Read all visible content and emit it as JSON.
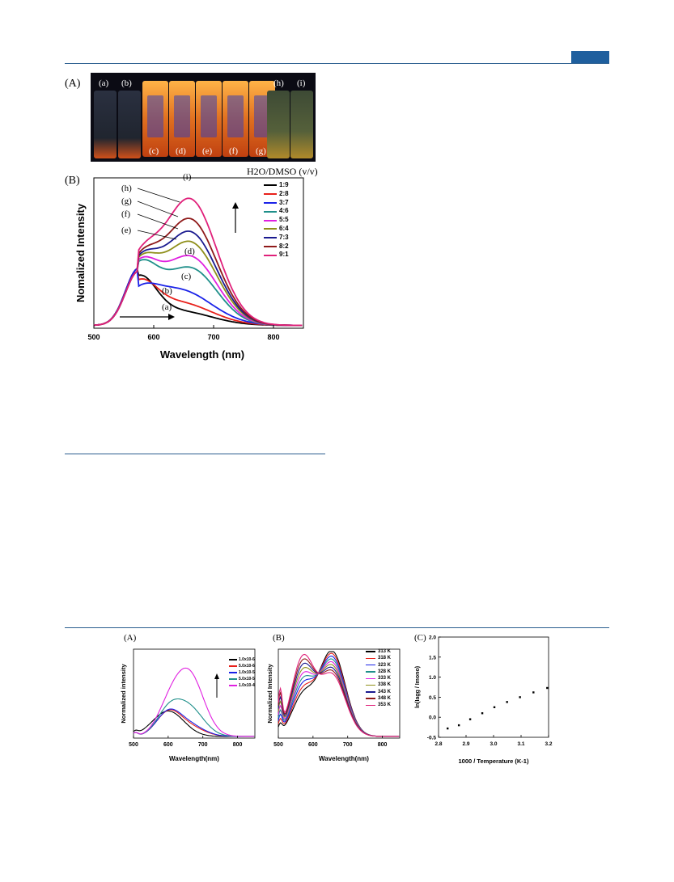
{
  "figure1": {
    "panel_a_label": "(A)",
    "vial_labels_top": [
      "(a)",
      "(b)",
      "(h)",
      "(i)"
    ],
    "vial_labels_bottom": [
      "(c)",
      "(d)",
      "(e)",
      "(f)",
      "(g)"
    ],
    "panel_b_label": "(B)",
    "legend_title": "H2O/DMSO (v/v)",
    "curve_labels": [
      "(a)",
      "(b)",
      "(c)",
      "(d)",
      "(e)",
      "(f)",
      "(g)",
      "(h)",
      "(i)"
    ],
    "chart_data": {
      "type": "line",
      "xlabel": "Wavelength (nm)",
      "ylabel": "Nomalized Intensity",
      "xlim": [
        500,
        850
      ],
      "xticks": [
        "500",
        "600",
        "700",
        "800"
      ],
      "series": [
        {
          "name": "1:9",
          "color": "#000000",
          "peak_wavelength": 575,
          "peak_value": 0.4
        },
        {
          "name": "2:8",
          "color": "#e8201a",
          "peak_wavelength": 575,
          "peak_value": 0.4
        },
        {
          "name": "3:7",
          "color": "#1a22e8",
          "peak_wavelength": 575,
          "peak_value": 0.4
        },
        {
          "name": "4:6",
          "color": "#1f8f8a",
          "peak_wavelength": 660,
          "peak_value": 0.52
        },
        {
          "name": "5:5",
          "color": "#e020e0",
          "peak_wavelength": 660,
          "peak_value": 0.6
        },
        {
          "name": "6:4",
          "color": "#8f8f1a",
          "peak_wavelength": 660,
          "peak_value": 0.7
        },
        {
          "name": "7:3",
          "color": "#1a1a8f",
          "peak_wavelength": 660,
          "peak_value": 0.77
        },
        {
          "name": "8:2",
          "color": "#8f1a1a",
          "peak_wavelength": 660,
          "peak_value": 0.86
        },
        {
          "name": "9:1",
          "color": "#e0207a",
          "peak_wavelength": 660,
          "peak_value": 1.0
        }
      ]
    }
  },
  "figure2": {
    "panel_a": {
      "label": "(A)",
      "chart_data": {
        "type": "line",
        "xlabel": "Wavelength(nm)",
        "ylabel": "Normalized intensity",
        "xlim": [
          500,
          850
        ],
        "xticks": [
          "500",
          "600",
          "700",
          "800"
        ],
        "series": [
          {
            "name": "1.0x10-6",
            "color": "#000000",
            "peak_value": 0.3
          },
          {
            "name": "5.0x10-6",
            "color": "#e8201a",
            "peak_value": 0.38
          },
          {
            "name": "1.0x10-5",
            "color": "#1a22e8",
            "peak_value": 0.4
          },
          {
            "name": "5.0x10-5",
            "color": "#1f8f8a",
            "peak_value": 0.6
          },
          {
            "name": "1.0x10-4",
            "color": "#e020e0",
            "peak_value": 1.0
          }
        ]
      }
    },
    "panel_b": {
      "label": "(B)",
      "chart_data": {
        "type": "line",
        "xlabel": "Wavelength(nm)",
        "ylabel": "Normalized Intensity",
        "xlim": [
          500,
          850
        ],
        "xticks": [
          "500",
          "600",
          "700",
          "800"
        ],
        "series": [
          {
            "name": "313 K",
            "color": "#000000"
          },
          {
            "name": "318 K",
            "color": "#e8201a"
          },
          {
            "name": "323 K",
            "color": "#1a22e8"
          },
          {
            "name": "328 K",
            "color": "#1f8f8a"
          },
          {
            "name": "333 K",
            "color": "#e020e0"
          },
          {
            "name": "338 K",
            "color": "#8f8f1a"
          },
          {
            "name": "343 K",
            "color": "#1a1a8f"
          },
          {
            "name": "348 K",
            "color": "#8f1a1a"
          },
          {
            "name": "353 K",
            "color": "#e0207a"
          }
        ]
      }
    },
    "panel_c": {
      "label": "(C)",
      "chart_data": {
        "type": "scatter",
        "xlabel": "1000 / Temperature (K-1)",
        "ylabel": "ln(Iagg / Imono)",
        "xlim": [
          2.8,
          3.2
        ],
        "ylim": [
          -0.5,
          2.0
        ],
        "xticks": [
          "2.8",
          "2.9",
          "3.0",
          "3.1",
          "3.2"
        ],
        "yticks": [
          "-0.5",
          "0.0",
          "0.5",
          "1.0",
          "1.5",
          "2.0"
        ],
        "x": [
          2.833,
          2.874,
          2.915,
          2.959,
          3.003,
          3.049,
          3.096,
          3.145,
          3.195
        ],
        "y": [
          -0.28,
          -0.2,
          -0.05,
          0.1,
          0.25,
          0.38,
          0.5,
          0.62,
          0.73
        ]
      }
    }
  }
}
